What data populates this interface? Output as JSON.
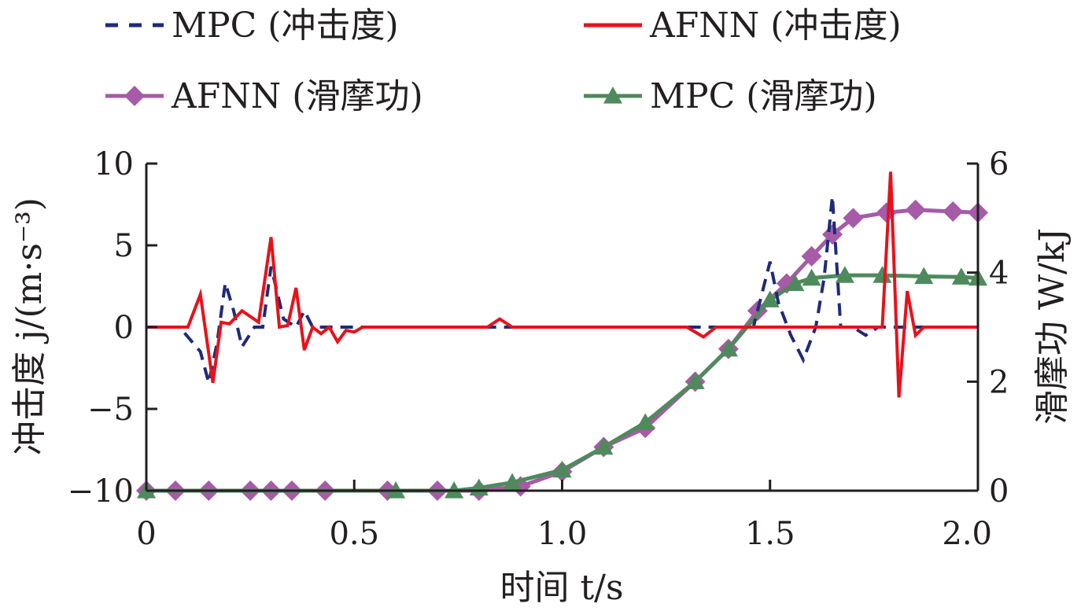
{
  "chart_data": {
    "type": "line",
    "xlabel": "时间 t/s",
    "ylabel_left": "冲击度 j/(m·s⁻³)",
    "ylabel_right": "滑摩功 W/kJ",
    "xlim": [
      0,
      2.0
    ],
    "ylim_left": [
      -10,
      10
    ],
    "ylim_right": [
      0,
      6
    ],
    "x_ticks": [
      "0",
      "0.5",
      "1.0",
      "1.5",
      "2.0"
    ],
    "y_left_ticks": [
      "10",
      "5",
      "0",
      "−5",
      "−10"
    ],
    "y_right_ticks": [
      "6",
      "4",
      "2",
      "0"
    ],
    "legend_position": "top",
    "grid": false,
    "series": [
      {
        "name": "MPC (冲击度)",
        "axis": "left",
        "style": "dashed",
        "marker": "none",
        "color": "#1f2a7a",
        "points": [
          [
            0,
            0
          ],
          [
            0.08,
            0
          ],
          [
            0.13,
            -1.5
          ],
          [
            0.15,
            -3.4
          ],
          [
            0.17,
            -1
          ],
          [
            0.19,
            2.7
          ],
          [
            0.21,
            1
          ],
          [
            0.23,
            -1.2
          ],
          [
            0.26,
            0
          ],
          [
            0.28,
            0
          ],
          [
            0.3,
            3.7
          ],
          [
            0.33,
            0.5
          ],
          [
            0.36,
            0
          ],
          [
            0.38,
            1
          ],
          [
            0.4,
            0
          ],
          [
            0.6,
            0
          ],
          [
            0.85,
            0
          ],
          [
            1.35,
            0
          ],
          [
            1.42,
            0
          ],
          [
            1.46,
            0
          ],
          [
            1.5,
            4
          ],
          [
            1.52,
            1.5
          ],
          [
            1.55,
            -0.5
          ],
          [
            1.58,
            -2
          ],
          [
            1.61,
            0
          ],
          [
            1.63,
            3
          ],
          [
            1.65,
            8
          ],
          [
            1.67,
            0
          ],
          [
            1.7,
            0
          ],
          [
            1.73,
            -0.5
          ],
          [
            1.76,
            0
          ],
          [
            2.0,
            0
          ]
        ]
      },
      {
        "name": "AFNN (冲击度)",
        "axis": "left",
        "style": "solid",
        "marker": "none",
        "color": "#e8111a",
        "points": [
          [
            0,
            0
          ],
          [
            0.1,
            0
          ],
          [
            0.13,
            2
          ],
          [
            0.16,
            -3.4
          ],
          [
            0.18,
            0.3
          ],
          [
            0.2,
            0.2
          ],
          [
            0.23,
            1
          ],
          [
            0.27,
            0.3
          ],
          [
            0.3,
            5.5
          ],
          [
            0.32,
            0
          ],
          [
            0.34,
            0.1
          ],
          [
            0.36,
            2.4
          ],
          [
            0.38,
            -1.4
          ],
          [
            0.4,
            0
          ],
          [
            0.42,
            -0.4
          ],
          [
            0.44,
            0
          ],
          [
            0.46,
            -0.9
          ],
          [
            0.48,
            -0.2
          ],
          [
            0.5,
            -0.3
          ],
          [
            0.52,
            0
          ],
          [
            0.82,
            0
          ],
          [
            0.85,
            0.5
          ],
          [
            0.88,
            0
          ],
          [
            1.3,
            0
          ],
          [
            1.34,
            -0.6
          ],
          [
            1.37,
            0
          ],
          [
            1.75,
            0
          ],
          [
            1.77,
            0
          ],
          [
            1.79,
            9.5
          ],
          [
            1.81,
            -4.3
          ],
          [
            1.83,
            2.2
          ],
          [
            1.85,
            -0.5
          ],
          [
            1.87,
            0
          ],
          [
            2.0,
            0
          ]
        ]
      },
      {
        "name": "AFNN (滑摩功)",
        "axis": "right",
        "style": "solid",
        "marker": "diamond",
        "color": "#a65aa8",
        "points": [
          [
            0,
            0
          ],
          [
            0.07,
            0
          ],
          [
            0.15,
            0
          ],
          [
            0.25,
            0
          ],
          [
            0.3,
            0
          ],
          [
            0.35,
            0
          ],
          [
            0.43,
            0
          ],
          [
            0.58,
            0
          ],
          [
            0.7,
            0
          ],
          [
            0.8,
            0
          ],
          [
            0.9,
            0.08
          ],
          [
            1.0,
            0.35
          ],
          [
            1.1,
            0.8
          ],
          [
            1.2,
            1.15
          ],
          [
            1.32,
            2.0
          ],
          [
            1.4,
            2.6
          ],
          [
            1.47,
            3.3
          ],
          [
            1.54,
            3.8
          ],
          [
            1.6,
            4.3
          ],
          [
            1.65,
            4.7
          ],
          [
            1.7,
            5.0
          ],
          [
            1.78,
            5.1
          ],
          [
            1.85,
            5.15
          ],
          [
            1.94,
            5.12
          ],
          [
            2.0,
            5.1
          ]
        ]
      },
      {
        "name": "MPC (滑摩功)",
        "axis": "right",
        "style": "solid",
        "marker": "triangle",
        "color": "#4f8a5d",
        "points": [
          [
            0,
            0
          ],
          [
            0.6,
            0
          ],
          [
            0.74,
            0
          ],
          [
            0.8,
            0.05
          ],
          [
            0.88,
            0.15
          ],
          [
            1.0,
            0.38
          ],
          [
            1.1,
            0.8
          ],
          [
            1.2,
            1.25
          ],
          [
            1.32,
            2.0
          ],
          [
            1.4,
            2.6
          ],
          [
            1.5,
            3.5
          ],
          [
            1.56,
            3.8
          ],
          [
            1.6,
            3.9
          ],
          [
            1.68,
            3.95
          ],
          [
            1.77,
            3.95
          ],
          [
            1.87,
            3.93
          ],
          [
            1.96,
            3.92
          ],
          [
            2.0,
            3.9
          ]
        ]
      }
    ]
  }
}
